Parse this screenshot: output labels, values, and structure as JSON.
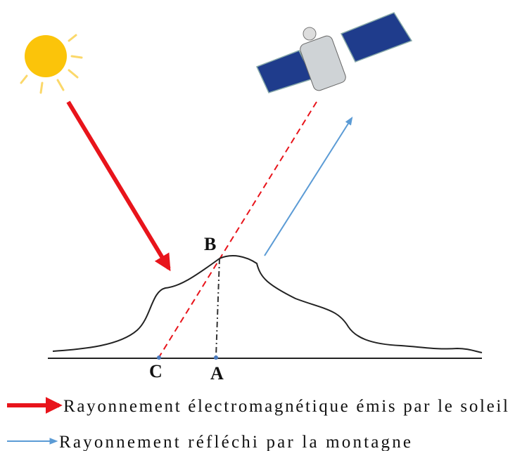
{
  "labels": {
    "B": "B",
    "C": "C",
    "A": "A"
  },
  "legend": [
    {
      "text": "Rayonnement électromagnétique émis par le soleil",
      "color": "#e8141b"
    },
    {
      "text": "Rayonnement réfléchi par la montagne",
      "color": "#5b9bd5"
    }
  ]
}
